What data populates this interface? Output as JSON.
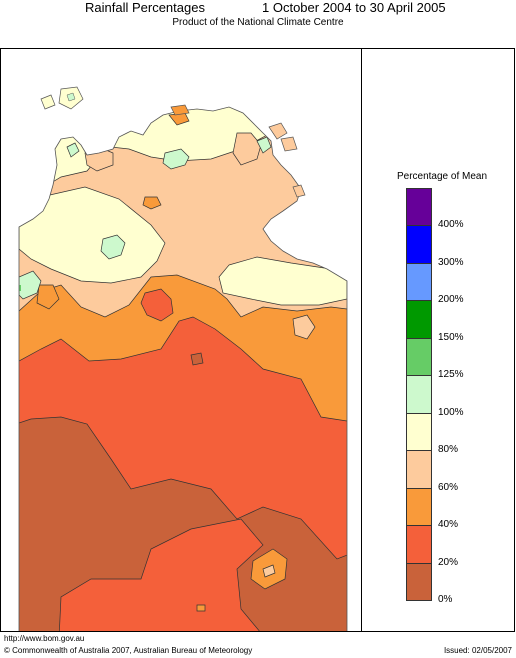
{
  "header": {
    "title": "Rainfall Percentages",
    "period": "1 October 2004 to 30 April 2005",
    "subtitle": "Product of the National Climate Centre"
  },
  "legend": {
    "title": "Percentage of Mean",
    "bands": [
      {
        "label": "0%",
        "color": "#c9623a"
      },
      {
        "label": "20%",
        "color": "#f4603a"
      },
      {
        "label": "40%",
        "color": "#f99a3a"
      },
      {
        "label": "60%",
        "color": "#fdcb9d"
      },
      {
        "label": "80%",
        "color": "#ffffd0"
      },
      {
        "label": "100%",
        "color": "#cdf9cd"
      },
      {
        "label": "125%",
        "color": "#66cc66"
      },
      {
        "label": "150%",
        "color": "#009900"
      },
      {
        "label": "200%",
        "color": "#6699ff"
      },
      {
        "label": "300%",
        "color": "#0000ff"
      },
      {
        "label": "400%",
        "color": "#660099"
      }
    ]
  },
  "footer": {
    "url": "http://www.bom.gov.au",
    "copyright": "© Commonwealth of Australia 2007, Australian Bureau of Meteorology",
    "issued": "Issued: 02/05/2007"
  }
}
